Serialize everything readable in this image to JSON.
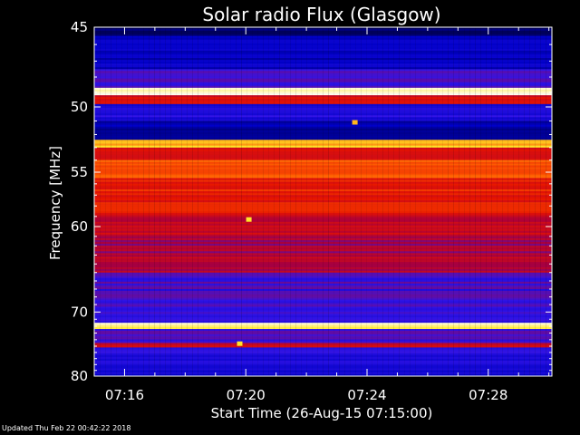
{
  "chart_data": {
    "type": "heatmap",
    "title": "Solar radio Flux (Glasgow)",
    "xlabel": "Start Time (26-Aug-15 07:15:00)",
    "ylabel": "Frequency [MHz]",
    "x_ticks": [
      "07:16",
      "07:20",
      "07:24",
      "07:28"
    ],
    "x_tick_minutes": [
      16,
      20,
      24,
      28
    ],
    "xlim_minutes": [
      15.0,
      30.1
    ],
    "y_ticks": [
      45,
      50,
      55,
      60,
      70,
      80
    ],
    "ylim": [
      45,
      80
    ],
    "y_scale": "reciprocal",
    "colormap": "blue-red-yellow-white",
    "bands": [
      {
        "from": 45.0,
        "to": 45.5,
        "level": 0.0
      },
      {
        "from": 45.5,
        "to": 47.5,
        "level": 0.15
      },
      {
        "from": 47.5,
        "to": 48.7,
        "level": 0.3
      },
      {
        "from": 48.7,
        "to": 49.2,
        "level": 1.0
      },
      {
        "from": 49.2,
        "to": 49.8,
        "level": 0.55
      },
      {
        "from": 49.8,
        "to": 51.0,
        "level": 0.25
      },
      {
        "from": 51.0,
        "to": 52.4,
        "level": 0.1
      },
      {
        "from": 52.4,
        "to": 53.0,
        "level": 0.85
      },
      {
        "from": 53.0,
        "to": 54.0,
        "level": 0.55
      },
      {
        "from": 54.0,
        "to": 55.5,
        "level": 0.72
      },
      {
        "from": 55.5,
        "to": 57.0,
        "level": 0.62
      },
      {
        "from": 57.0,
        "to": 59.0,
        "level": 0.6
      },
      {
        "from": 59.0,
        "to": 61.0,
        "level": 0.52
      },
      {
        "from": 61.0,
        "to": 63.0,
        "level": 0.45
      },
      {
        "from": 63.0,
        "to": 65.0,
        "level": 0.48
      },
      {
        "from": 65.0,
        "to": 67.0,
        "level": 0.32
      },
      {
        "from": 67.0,
        "to": 70.0,
        "level": 0.3
      },
      {
        "from": 70.0,
        "to": 71.5,
        "level": 0.28
      },
      {
        "from": 71.5,
        "to": 72.4,
        "level": 0.95
      },
      {
        "from": 72.4,
        "to": 74.5,
        "level": 0.3
      },
      {
        "from": 74.5,
        "to": 75.2,
        "level": 0.55
      },
      {
        "from": 75.2,
        "to": 78.0,
        "level": 0.25
      },
      {
        "from": 78.0,
        "to": 80.0,
        "level": 0.2
      }
    ],
    "hot_spots": [
      {
        "minute": 20.1,
        "freq": 59.3,
        "level": 0.9
      },
      {
        "minute": 23.6,
        "freq": 51.1,
        "level": 0.85
      },
      {
        "minute": 19.8,
        "freq": 74.6,
        "level": 0.9
      }
    ]
  },
  "footer": {
    "updated": "Updated Thu Feb 22 00:42:22 2018"
  }
}
